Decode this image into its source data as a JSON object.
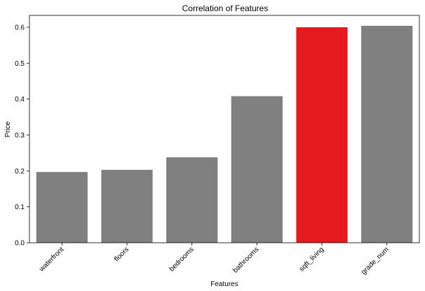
{
  "chart_data": {
    "type": "bar",
    "title": "Correlation of Features",
    "xlabel": "Features",
    "ylabel": "Price",
    "categories": [
      "waterfront",
      "floors",
      "bedrooms",
      "bathrooms",
      "sqft_living",
      "grade_num"
    ],
    "values": [
      0.197,
      0.203,
      0.238,
      0.408,
      0.6,
      0.604
    ],
    "ylim": [
      0,
      0.633
    ],
    "yticks": [
      "0.0",
      "0.1",
      "0.2",
      "0.3",
      "0.4",
      "0.5",
      "0.6"
    ],
    "bar_colors": [
      "#808080",
      "#808080",
      "#808080",
      "#808080",
      "#e41a1c",
      "#808080"
    ],
    "grid": false,
    "legend": "none"
  }
}
